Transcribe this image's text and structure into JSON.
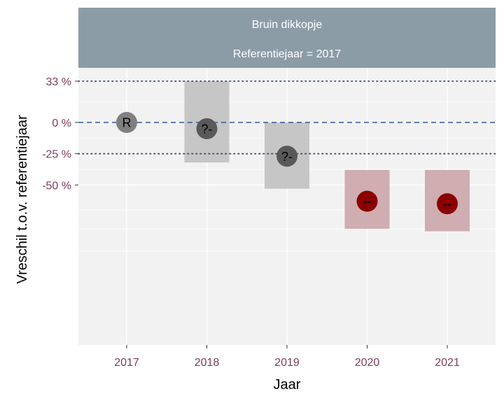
{
  "strip": {
    "line1": "Bruin dikkopje",
    "line2": "Referentiejaar = 2017"
  },
  "axes": {
    "xlabel": "Jaar",
    "ylabel": "Vreschil t.o.v. referentiejaar"
  },
  "colors": {
    "panel_bg": "#f2f2f2",
    "strip_bg": "#8c9ca7",
    "tick_text": "#7b3b5f",
    "ref_line": "#2f5597",
    "dotted_line": "#3d4a78",
    "ci_neutral": "#c6c6c6",
    "ci_negative": "#cfadb0",
    "pt_reference": "#808080",
    "pt_uncertain": "#595959",
    "pt_negative": "#8b0000"
  },
  "chart_data": {
    "type": "scatter",
    "title": "Bruin dikkopje",
    "subtitle": "Referentiejaar = 2017",
    "xlabel": "Jaar",
    "ylabel": "Vreschil t.o.v. referentiejaar",
    "categories": [
      "2017",
      "2018",
      "2019",
      "2020",
      "2021"
    ],
    "ylim": [
      -90,
      38
    ],
    "y_ticks": [
      {
        "value": 33,
        "label": "33 %"
      },
      {
        "value": 0,
        "label": "0 %"
      },
      {
        "value": -25,
        "label": "-25 %"
      },
      {
        "value": -50,
        "label": "-50 %"
      }
    ],
    "reference_lines": [
      {
        "value": 33,
        "style": "dotted"
      },
      {
        "value": 0,
        "style": "dashed"
      },
      {
        "value": -25,
        "style": "dotted"
      }
    ],
    "points": [
      {
        "year": "2017",
        "estimate": 0,
        "lower": null,
        "upper": null,
        "label": "R",
        "class": "reference"
      },
      {
        "year": "2018",
        "estimate": -5,
        "lower": -32,
        "upper": 33,
        "label": "?-",
        "class": "uncertain"
      },
      {
        "year": "2019",
        "estimate": -27,
        "lower": -53,
        "upper": 0,
        "label": "?-",
        "class": "uncertain"
      },
      {
        "year": "2020",
        "estimate": -63,
        "lower": -85,
        "upper": -38,
        "label": "--",
        "class": "negative"
      },
      {
        "year": "2021",
        "estimate": -65,
        "lower": -87,
        "upper": -38,
        "label": "--",
        "class": "negative"
      }
    ],
    "grid": true
  }
}
